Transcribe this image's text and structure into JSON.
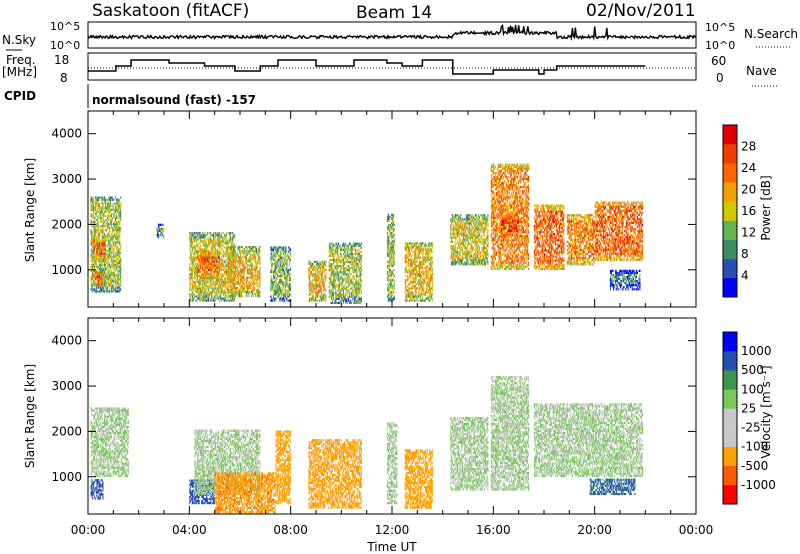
{
  "header": {
    "station": "Saskatoon (fitACF)",
    "beam": "Beam 14",
    "date": "02/Nov/2011"
  },
  "noise_panel": {
    "left_label": "N.Sky",
    "right_label": "N.Search",
    "left_ticks": [
      "10^5",
      "10^0"
    ],
    "right_ticks": [
      "10^5",
      "10^0"
    ]
  },
  "freq_panel": {
    "left_label_1": "Freq.",
    "left_label_2": "[MHz]",
    "right_label": "Nave",
    "left_ticks": [
      "18",
      "8"
    ],
    "right_ticks": [
      "60",
      "0"
    ]
  },
  "cpid": {
    "label": "CPID",
    "value": "normalsound (fast) -157"
  },
  "colors": {
    "power_scale": [
      "#0000ff",
      "#2850b4",
      "#3c8c64",
      "#64b450",
      "#d2c800",
      "#f0a000",
      "#ff6400",
      "#f03c00",
      "#e10000"
    ],
    "velocity_scale": [
      "#ff0000",
      "#ff5a00",
      "#ffa000",
      "#c8c8c8",
      "#c8c8c8",
      "#78c85a",
      "#3c9650",
      "#2850b4",
      "#0000ff"
    ],
    "ground_scatter": "#c8c8c8"
  },
  "chart_data": [
    {
      "type": "heatmap",
      "name": "power",
      "ylabel": "Slant Range [km]",
      "y_ticks": [
        "1000",
        "2000",
        "3000",
        "4000"
      ],
      "ylim": [
        180,
        4500
      ],
      "xlim": [
        0,
        24
      ],
      "colorbar_label": "Power [dB]",
      "colorbar_ticks": [
        "4",
        "8",
        "12",
        "16",
        "20",
        "24",
        "28"
      ],
      "colorbar_range": [
        0,
        32
      ],
      "blocks": [
        {
          "t0": 0.1,
          "t1": 1.3,
          "r0": 500,
          "r1": 2600,
          "v": 14
        },
        {
          "t0": 0.2,
          "t1": 0.7,
          "r0": 1200,
          "r1": 1700,
          "v": 24
        },
        {
          "t0": 0.2,
          "t1": 0.6,
          "r0": 650,
          "r1": 950,
          "v": 28
        },
        {
          "t0": 2.7,
          "t1": 3.0,
          "r0": 1700,
          "r1": 2000,
          "v": 10
        },
        {
          "t0": 4.0,
          "t1": 5.8,
          "r0": 300,
          "r1": 1800,
          "v": 16
        },
        {
          "t0": 4.3,
          "t1": 5.2,
          "r0": 800,
          "r1": 1400,
          "v": 24
        },
        {
          "t0": 5.5,
          "t1": 6.8,
          "r0": 400,
          "r1": 1500,
          "v": 18
        },
        {
          "t0": 7.2,
          "t1": 8.0,
          "r0": 300,
          "r1": 1500,
          "v": 12
        },
        {
          "t0": 8.7,
          "t1": 9.4,
          "r0": 300,
          "r1": 1200,
          "v": 18
        },
        {
          "t0": 9.5,
          "t1": 10.8,
          "r0": 250,
          "r1": 1600,
          "v": 14
        },
        {
          "t0": 11.8,
          "t1": 12.1,
          "r0": 300,
          "r1": 2200,
          "v": 14
        },
        {
          "t0": 12.5,
          "t1": 13.6,
          "r0": 300,
          "r1": 1600,
          "v": 18
        },
        {
          "t0": 14.3,
          "t1": 15.8,
          "r0": 1100,
          "r1": 2200,
          "v": 16
        },
        {
          "t0": 15.9,
          "t1": 17.4,
          "r0": 1000,
          "r1": 3300,
          "v": 22
        },
        {
          "t0": 16.3,
          "t1": 17.0,
          "r0": 1700,
          "r1": 2200,
          "v": 28
        },
        {
          "t0": 17.6,
          "t1": 18.8,
          "r0": 1000,
          "r1": 2400,
          "v": 24
        },
        {
          "t0": 18.9,
          "t1": 20.0,
          "r0": 1100,
          "r1": 2200,
          "v": 22
        },
        {
          "t0": 20.0,
          "t1": 21.9,
          "r0": 1200,
          "r1": 2500,
          "v": 24
        },
        {
          "t0": 20.6,
          "t1": 21.8,
          "r0": 550,
          "r1": 1000,
          "v": 8
        }
      ]
    },
    {
      "type": "heatmap",
      "name": "velocity",
      "ylabel": "Slant Range [km]",
      "xlabel": "Time UT",
      "y_ticks": [
        "1000",
        "2000",
        "3000",
        "4000"
      ],
      "x_ticks": [
        "00:00",
        "04:00",
        "08:00",
        "12:00",
        "16:00",
        "20:00",
        "00:00"
      ],
      "ylim": [
        180,
        4500
      ],
      "xlim": [
        0,
        24
      ],
      "colorbar_label": "Velocity [m s⁻¹]",
      "colorbar_ticks": [
        "-1000",
        "-500",
        "-100",
        "-25",
        "25",
        "100",
        "500",
        "1000"
      ],
      "blocks": [
        {
          "t0": 0.1,
          "t1": 1.6,
          "r0": 1000,
          "r1": 2500,
          "v": 0
        },
        {
          "t0": 0.1,
          "t1": 0.6,
          "r0": 500,
          "r1": 950,
          "v": 250
        },
        {
          "t0": 4.0,
          "t1": 5.0,
          "r0": 400,
          "r1": 900,
          "v": 250
        },
        {
          "t0": 4.2,
          "t1": 6.8,
          "r0": 600,
          "r1": 2000,
          "v": 0
        },
        {
          "t0": 5.0,
          "t1": 7.4,
          "r0": 200,
          "r1": 1100,
          "v": -400
        },
        {
          "t0": 7.4,
          "t1": 8.0,
          "r0": 400,
          "r1": 2000,
          "v": -200
        },
        {
          "t0": 8.7,
          "t1": 10.8,
          "r0": 300,
          "r1": 1800,
          "v": -150
        },
        {
          "t0": 11.8,
          "t1": 12.2,
          "r0": 400,
          "r1": 2200,
          "v": 0
        },
        {
          "t0": 12.5,
          "t1": 13.6,
          "r0": 300,
          "r1": 1600,
          "v": -300
        },
        {
          "t0": 14.3,
          "t1": 15.8,
          "r0": 700,
          "r1": 2300,
          "v": 0
        },
        {
          "t0": 15.9,
          "t1": 17.4,
          "r0": 700,
          "r1": 3200,
          "v": 0
        },
        {
          "t0": 17.6,
          "t1": 20.0,
          "r0": 1000,
          "r1": 2600,
          "v": 0
        },
        {
          "t0": 20.0,
          "t1": 21.9,
          "r0": 1000,
          "r1": 2600,
          "v": 0
        },
        {
          "t0": 19.8,
          "t1": 21.6,
          "r0": 600,
          "r1": 950,
          "v": 120
        }
      ]
    }
  ]
}
